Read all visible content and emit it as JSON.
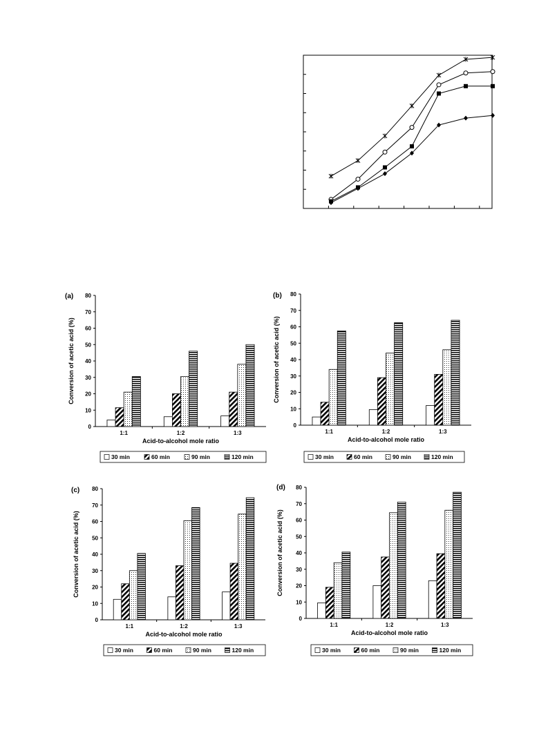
{
  "chart_data": [
    {
      "type": "line",
      "title": "",
      "xlabel": "",
      "ylabel": "",
      "x": [
        1,
        2,
        3,
        4,
        5,
        6,
        7
      ],
      "series": [
        {
          "marker": "asterisk",
          "values": [
            11.8,
            17.5,
            26.5,
            37.5,
            48.7,
            54.5,
            55.2
          ]
        },
        {
          "marker": "open-circle",
          "values": [
            3.3,
            10.7,
            20.6,
            29.6,
            45.2,
            49.5,
            50.0
          ]
        },
        {
          "marker": "filled-square",
          "values": [
            2.6,
            7.7,
            15.0,
            22.7,
            42.0,
            44.7,
            44.7
          ]
        },
        {
          "marker": "filled-diamond",
          "values": [
            2.1,
            7.3,
            12.7,
            20.2,
            30.5,
            33.0,
            34.0
          ]
        }
      ],
      "xlim": [
        0,
        7
      ],
      "ylim": [
        0,
        56
      ],
      "grid": false
    },
    {
      "type": "bar",
      "panel_label": "(a)",
      "categories": [
        "1:1",
        "1:2",
        "1:3"
      ],
      "xlabel": "Acid-to-alcohol mole ratio",
      "ylabel": "Conversion of acetic acid (%)",
      "yticks": [
        0,
        10,
        20,
        30,
        40,
        50,
        60,
        70,
        80
      ],
      "ylim": [
        0,
        80
      ],
      "legend": [
        "30 min",
        "60 min",
        "90 min",
        "120 min"
      ],
      "series": [
        {
          "name": "30 min",
          "values": [
            4,
            6,
            6.5
          ]
        },
        {
          "name": "60 min",
          "values": [
            11.5,
            20,
            21
          ]
        },
        {
          "name": "90 min",
          "values": [
            21,
            30.5,
            38
          ]
        },
        {
          "name": "120 min",
          "values": [
            30.5,
            46,
            50
          ]
        }
      ]
    },
    {
      "type": "bar",
      "panel_label": "(b)",
      "categories": [
        "1:1",
        "1:2",
        "1:3"
      ],
      "xlabel": "Acid-to-alcohol mole ratio",
      "ylabel": "Conversion of acetic acid (%)",
      "yticks": [
        0,
        10,
        20,
        30,
        40,
        50,
        60,
        70,
        80
      ],
      "ylim": [
        0,
        80
      ],
      "legend": [
        "30 min",
        "60 min",
        "90 min",
        "120 min"
      ],
      "series": [
        {
          "name": "30 min",
          "values": [
            5,
            9.5,
            12
          ]
        },
        {
          "name": "60 min",
          "values": [
            14,
            29,
            31
          ]
        },
        {
          "name": "90 min",
          "values": [
            34,
            44,
            46
          ]
        },
        {
          "name": "120 min",
          "values": [
            57.5,
            62.5,
            64
          ]
        }
      ]
    },
    {
      "type": "bar",
      "panel_label": "(c)",
      "categories": [
        "1:1",
        "1:2",
        "1:3"
      ],
      "xlabel": "Acid-to-alcohol mole ratio",
      "ylabel": "Conversion of acetic acid (%)",
      "yticks": [
        0,
        10,
        20,
        30,
        40,
        50,
        60,
        70,
        80
      ],
      "ylim": [
        0,
        80
      ],
      "legend": [
        "30 min",
        "60 min",
        "90 min",
        "120 min"
      ],
      "series": [
        {
          "name": "30 min",
          "values": [
            12.5,
            14,
            17
          ]
        },
        {
          "name": "60 min",
          "values": [
            22,
            33,
            34.5
          ]
        },
        {
          "name": "90 min",
          "values": [
            30,
            60.5,
            64.5
          ]
        },
        {
          "name": "120 min",
          "values": [
            40.5,
            68.5,
            74.5
          ]
        }
      ]
    },
    {
      "type": "bar",
      "panel_label": "(d)",
      "categories": [
        "1:1",
        "1:2",
        "1:3"
      ],
      "xlabel": "Acid-to-alcohol mole ratio",
      "ylabel": "Conversion of acetic acid (%)",
      "yticks": [
        0,
        10,
        20,
        30,
        40,
        50,
        60,
        70,
        80
      ],
      "ylim": [
        0,
        80
      ],
      "legend": [
        "30 min",
        "60 min",
        "90 min",
        "120 min"
      ],
      "series": [
        {
          "name": "30 min",
          "values": [
            9.5,
            20,
            23
          ]
        },
        {
          "name": "60 min",
          "values": [
            19,
            37.5,
            39.5
          ]
        },
        {
          "name": "90 min",
          "values": [
            34,
            64.5,
            66
          ]
        },
        {
          "name": "120 min",
          "values": [
            40.5,
            71,
            77
          ]
        }
      ]
    }
  ]
}
